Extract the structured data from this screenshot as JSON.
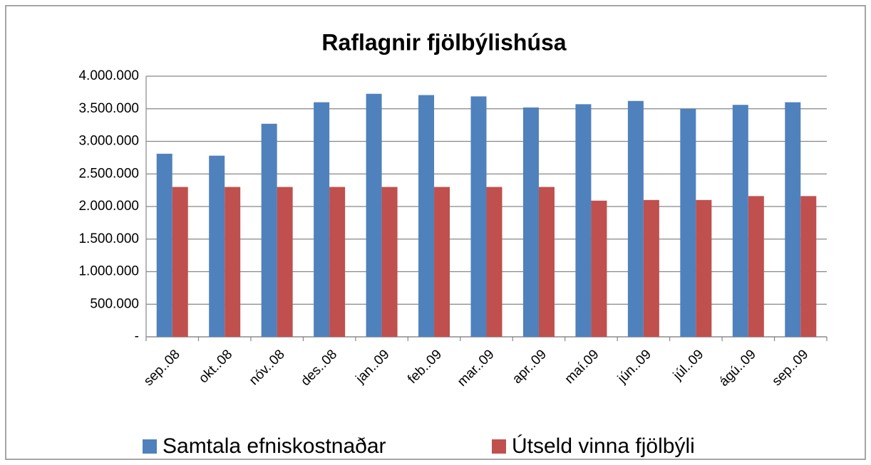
{
  "chart_data": {
    "type": "bar",
    "title": "Raflagnir fjölbýlishúsa",
    "categories": [
      "sep..08",
      "okt..08",
      "nóv..08",
      "des..08",
      "jan..09",
      "feb..09",
      "mar..09",
      "apr..09",
      "maí.09",
      "jún..09",
      "júl..09",
      "ágú..09",
      "sep..09"
    ],
    "series": [
      {
        "name": "Samtala efniskostnaðar",
        "color": "#4f81bd",
        "values": [
          2810000,
          2780000,
          3270000,
          3600000,
          3730000,
          3710000,
          3690000,
          3520000,
          3570000,
          3620000,
          3500000,
          3560000,
          3600000
        ]
      },
      {
        "name": "Útseld vinna fjölbýli",
        "color": "#c0504d",
        "values": [
          2300000,
          2300000,
          2300000,
          2300000,
          2300000,
          2300000,
          2300000,
          2300000,
          2090000,
          2100000,
          2100000,
          2160000,
          2160000
        ]
      }
    ],
    "ylim": [
      0,
      4000000
    ],
    "yticks": [
      {
        "value": 0,
        "label": "-"
      },
      {
        "value": 500000,
        "label": "500.000"
      },
      {
        "value": 1000000,
        "label": "1.000.000"
      },
      {
        "value": 1500000,
        "label": "1.500.000"
      },
      {
        "value": 2000000,
        "label": "2.000.000"
      },
      {
        "value": 2500000,
        "label": "2.500.000"
      },
      {
        "value": 3000000,
        "label": "3.000.000"
      },
      {
        "value": 3500000,
        "label": "3.500.000"
      },
      {
        "value": 4000000,
        "label": "4.000.000"
      }
    ],
    "grid": true,
    "legend": "bottom"
  }
}
